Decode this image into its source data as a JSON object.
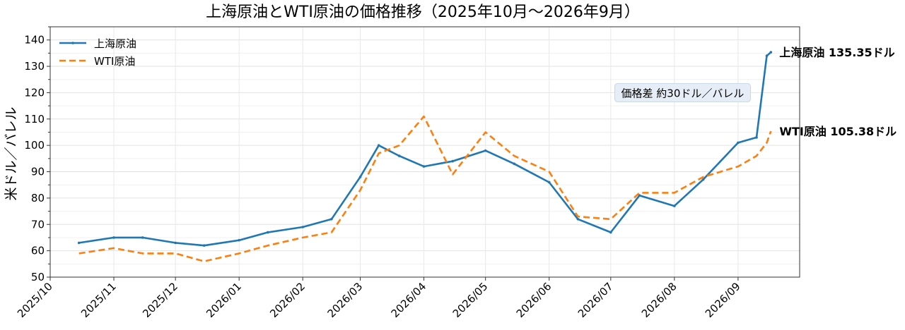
{
  "chart_data": {
    "type": "line",
    "title": "上海原油とWTI原油の価格推移（2025年10月〜2026年9月）",
    "xlabel": "",
    "ylabel": "米ドル／バレル",
    "ylim": [
      50,
      145
    ],
    "yticks": [
      50,
      60,
      70,
      80,
      90,
      100,
      110,
      120,
      130,
      140
    ],
    "xlim": [
      "2025-10-01",
      "2026-10-01"
    ],
    "xticks": [
      "2025-10-01",
      "2025-11-01",
      "2025-12-01",
      "2026-01-01",
      "2026-02-01",
      "2026-03-01",
      "2026-04-01",
      "2026-05-01",
      "2026-06-01",
      "2026-07-01",
      "2026-08-01",
      "2026-09-01"
    ],
    "xtick_labels": [
      "2025/10",
      "2025/11",
      "2025/12",
      "2026/01",
      "2026/02",
      "2026/03",
      "2026/04",
      "2026/05",
      "2026/06",
      "2026/07",
      "2026/08",
      "2026/09"
    ],
    "grid": true,
    "legend_position": "top-left",
    "series": [
      {
        "name": "上海原油",
        "color": "#1f77b4",
        "style": "solid",
        "marker": "point",
        "x": [
          "2025-10-15",
          "2025-11-01",
          "2025-11-15",
          "2025-12-01",
          "2025-12-15",
          "2026-01-01",
          "2026-01-15",
          "2026-02-01",
          "2026-02-15",
          "2026-03-01",
          "2026-03-10",
          "2026-03-20",
          "2026-04-01",
          "2026-04-15",
          "2026-05-01",
          "2026-05-15",
          "2026-06-01",
          "2026-06-15",
          "2026-07-01",
          "2026-07-15",
          "2026-08-01",
          "2026-08-15",
          "2026-09-01",
          "2026-09-10",
          "2026-09-15",
          "2026-09-17"
        ],
        "values": [
          63,
          65,
          65,
          63,
          62,
          64,
          67,
          69,
          72,
          88,
          100,
          96,
          92,
          94,
          98,
          93,
          86,
          72,
          67,
          81,
          77,
          87,
          101,
          103,
          134,
          135.35
        ]
      },
      {
        "name": "WTI原油",
        "color": "#ff7f0e",
        "style": "dashed",
        "marker": "none",
        "x": [
          "2025-10-15",
          "2025-11-01",
          "2025-11-15",
          "2025-12-01",
          "2025-12-15",
          "2026-01-01",
          "2026-01-15",
          "2026-02-01",
          "2026-02-15",
          "2026-03-01",
          "2026-03-10",
          "2026-03-20",
          "2026-04-01",
          "2026-04-15",
          "2026-05-01",
          "2026-05-15",
          "2026-06-01",
          "2026-06-15",
          "2026-07-01",
          "2026-07-15",
          "2026-08-01",
          "2026-08-15",
          "2026-09-01",
          "2026-09-10",
          "2026-09-15",
          "2026-09-17"
        ],
        "values": [
          59,
          61,
          59,
          59,
          56,
          59,
          62,
          65,
          67,
          83,
          97,
          100,
          111,
          89,
          105,
          96,
          90,
          73,
          72,
          82,
          82,
          88,
          92,
          96,
          101,
          105.38
        ]
      }
    ],
    "end_labels": [
      {
        "series": 0,
        "text": "上海原油  135.35ドル"
      },
      {
        "series": 1,
        "text": "WTI原油  105.38ドル"
      }
    ],
    "annotation": {
      "text": "価格差 約30ドル／バレル",
      "x": "2026-08-05",
      "y": 120,
      "bg": "#e6edf6"
    }
  }
}
